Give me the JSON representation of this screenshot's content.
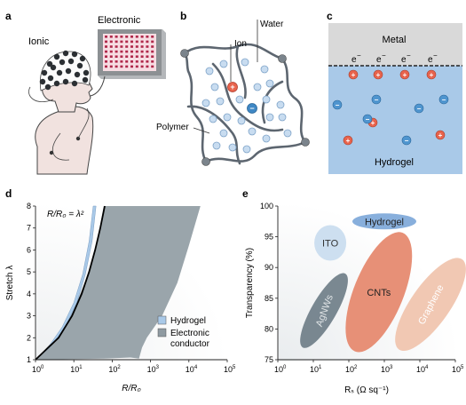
{
  "figure": {
    "panels": {
      "a": {
        "letter": "a",
        "ionic_label": "Ionic",
        "electronic_label": "Electronic"
      },
      "b": {
        "letter": "b",
        "water_label": "Water",
        "ion_label": "Ion",
        "polymer_label": "Polymer"
      },
      "c": {
        "letter": "c",
        "metal_label": "Metal",
        "hydrogel_label": "Hydrogel",
        "electron_label": "e",
        "electron_charge": "−"
      },
      "d": {
        "letter": "d",
        "equation_label": "R/R₀ = λ²",
        "legend": [
          "Hydrogel",
          "Electronic conductor"
        ]
      },
      "e": {
        "letter": "e",
        "regions": [
          "Hydrogel",
          "ITO",
          "CNTs",
          "AgNWs",
          "Graphene"
        ]
      }
    },
    "colors": {
      "hydrogel_blue": "#a9c9e8",
      "hydrogel_region": "#7ea8d9",
      "metal_gray": "#d9d9d9",
      "electronic_gray": "#8f9aa1",
      "cnt_orange": "#e68a70",
      "graphene_peach": "#f0c3ad",
      "agnw_slate": "#6f7e88",
      "ito_lightblue": "#c9dcef"
    }
  },
  "chart_data": [
    {
      "type": "area",
      "panel": "d",
      "xlabel": "R/R₀",
      "ylabel": "Stretch λ",
      "xscale": "log",
      "xlim": [
        1,
        100000
      ],
      "ylim": [
        1,
        8
      ],
      "xtick_exponents": [
        0,
        1,
        2,
        3,
        4,
        5
      ],
      "yticks": [
        1,
        2,
        3,
        4,
        5,
        6,
        7,
        8
      ],
      "legend_placement": "bottom-right",
      "series": [
        {
          "name": "Hydrogel",
          "color": "#a9c9e8",
          "lower_boundary": {
            "x": [
              1,
              2.5,
              6,
              12,
              20,
              30,
              38
            ],
            "y": [
              1,
              1.6,
              2.5,
              3.6,
              4.9,
              6.4,
              8
            ]
          },
          "upper_boundary": {
            "x": [
              1,
              2.2,
              5,
              10,
              17,
              25,
              32
            ],
            "y": [
              1,
              1.6,
              2.5,
              3.6,
              4.9,
              6.4,
              8
            ]
          }
        },
        {
          "name": "Electronic conductor",
          "color": "#9aa5ab",
          "upper_boundary": {
            "x": [
              1,
              3,
              10,
              25,
              45,
              60
            ],
            "y": [
              1,
              1.9,
              3.3,
              5.0,
              6.8,
              8
            ]
          },
          "lower_boundary": {
            "x": [
              1,
              60,
              300,
              500,
              600,
              800,
              2000,
              5000,
              10000,
              20000
            ],
            "y": [
              1,
              1.05,
              1.1,
              1.05,
              1.55,
              2.0,
              3.0,
              4.5,
              6.2,
              8
            ]
          }
        }
      ],
      "reference_curve": {
        "label": "R/R₀ = λ²",
        "x": [
          1,
          4,
          9,
          16,
          25,
          36,
          49,
          64
        ],
        "y": [
          1,
          2,
          3,
          4,
          5,
          6,
          7,
          8
        ]
      }
    },
    {
      "type": "scatter",
      "panel": "e",
      "xlabel": "Rₛ (Ω sq⁻¹)",
      "ylabel": "Transparency (%)",
      "xscale": "log",
      "xlim": [
        1,
        100000
      ],
      "ylim": [
        75,
        100
      ],
      "xtick_exponents": [
        0,
        1,
        2,
        3,
        4,
        5
      ],
      "yticks": [
        75,
        80,
        85,
        90,
        95,
        100
      ],
      "regions": [
        {
          "name": "Hydrogel",
          "x_center": 1000,
          "y_center": 97.5,
          "color": "#7ea8d9"
        },
        {
          "name": "ITO",
          "x_center": 30,
          "y_center": 94,
          "color": "#c9dcef"
        },
        {
          "name": "CNTs",
          "x_center": 700,
          "y_center": 86,
          "color": "#e68a70"
        },
        {
          "name": "AgNWs",
          "x_center": 20,
          "y_center": 83,
          "color": "#6f7e88"
        },
        {
          "name": "Graphene",
          "x_center": 20000,
          "y_center": 84,
          "color": "#f0c3ad"
        }
      ]
    }
  ]
}
